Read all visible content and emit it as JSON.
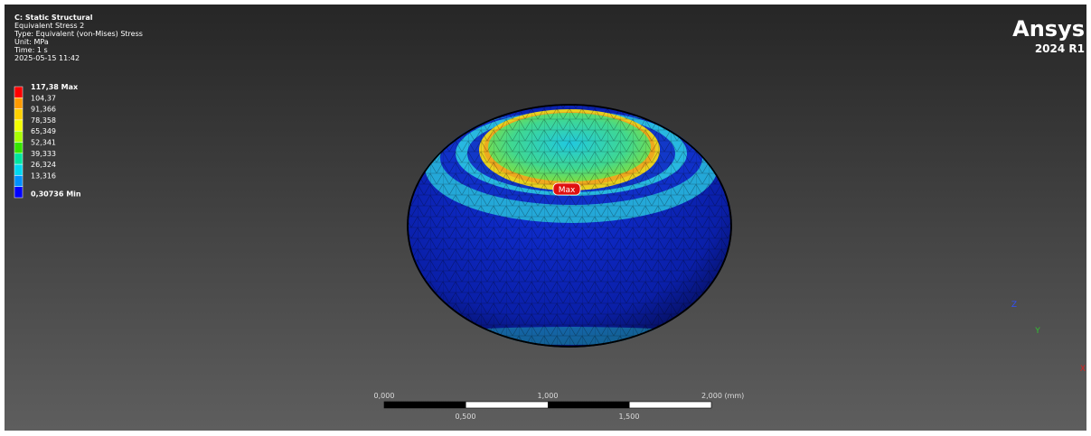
{
  "header": {
    "lines": [
      "C: Static Structural",
      "Equivalent Stress 2",
      "Type: Equivalent (von-Mises) Stress",
      "Unit: MPa",
      "Time: 1 s",
      "2025-05-15 11:42"
    ]
  },
  "legend": {
    "entries": [
      {
        "label": "117,38 Max",
        "color": "#ff0000"
      },
      {
        "label": "104,37",
        "color": "#ff9a00"
      },
      {
        "label": "91,366",
        "color": "#ffd000"
      },
      {
        "label": "78,358",
        "color": "#f2ff00"
      },
      {
        "label": "65,349",
        "color": "#a8ff00"
      },
      {
        "label": "52,341",
        "color": "#35e600"
      },
      {
        "label": "39,333",
        "color": "#00e6a0"
      },
      {
        "label": "26,324",
        "color": "#00d8f0"
      },
      {
        "label": "13,316",
        "color": "#0090ff"
      },
      {
        "label": "0,30736 Min",
        "color": "#0000ff"
      }
    ]
  },
  "logo": {
    "name": "Ansys",
    "version": "2024 R1"
  },
  "probe": {
    "label": "Max"
  },
  "scale_bar": {
    "top_labels": [
      "0,000",
      "1,000",
      "2,000 (mm)"
    ],
    "bottom_labels": [
      "0,500",
      "1,500"
    ]
  },
  "triad": {
    "z": "Z",
    "y": "Y",
    "x": "X"
  }
}
